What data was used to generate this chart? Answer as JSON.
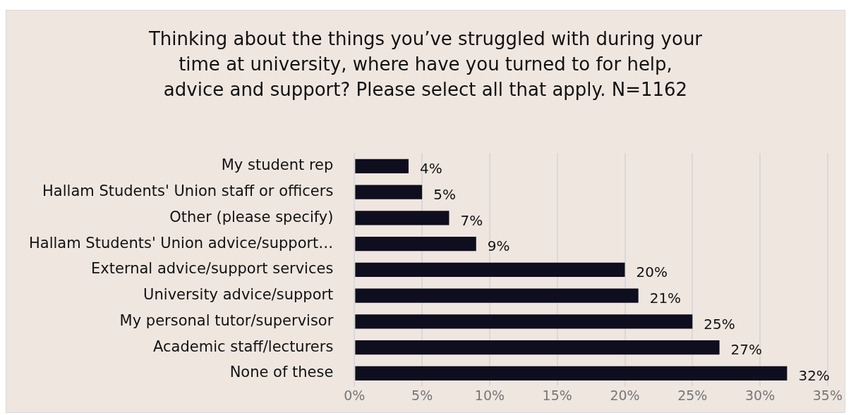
{
  "chart_data": {
    "type": "bar",
    "orientation": "horizontal",
    "title": "Thinking about the things you’ve struggled with during your\ntime at university, where have you turned to for help,\nadvice and support? Please select all that apply. N=1162",
    "categories": [
      "My student rep",
      "Hallam Students' Union staff or officers",
      "Other (please specify)",
      "Hallam Students' Union advice/support…",
      "External advice/support services",
      "University advice/support",
      "My personal tutor/supervisor",
      "Academic staff/lecturers",
      "None of these"
    ],
    "values": [
      4,
      5,
      7,
      9,
      20,
      21,
      25,
      27,
      32
    ],
    "value_labels": [
      "4%",
      "5%",
      "7%",
      "9%",
      "20%",
      "21%",
      "25%",
      "27%",
      "32%"
    ],
    "color": "#0f0e1e",
    "xlim": [
      0,
      35
    ],
    "xticks": [
      {
        "value": 0,
        "label": "0%"
      },
      {
        "value": 5,
        "label": "5%"
      },
      {
        "value": 10,
        "label": "10%"
      },
      {
        "value": 15,
        "label": "15%"
      },
      {
        "value": 20,
        "label": "20%"
      },
      {
        "value": 25,
        "label": "25%"
      },
      {
        "value": 30,
        "label": "30%"
      },
      {
        "value": 35,
        "label": "35%"
      }
    ],
    "grid": "x"
  }
}
